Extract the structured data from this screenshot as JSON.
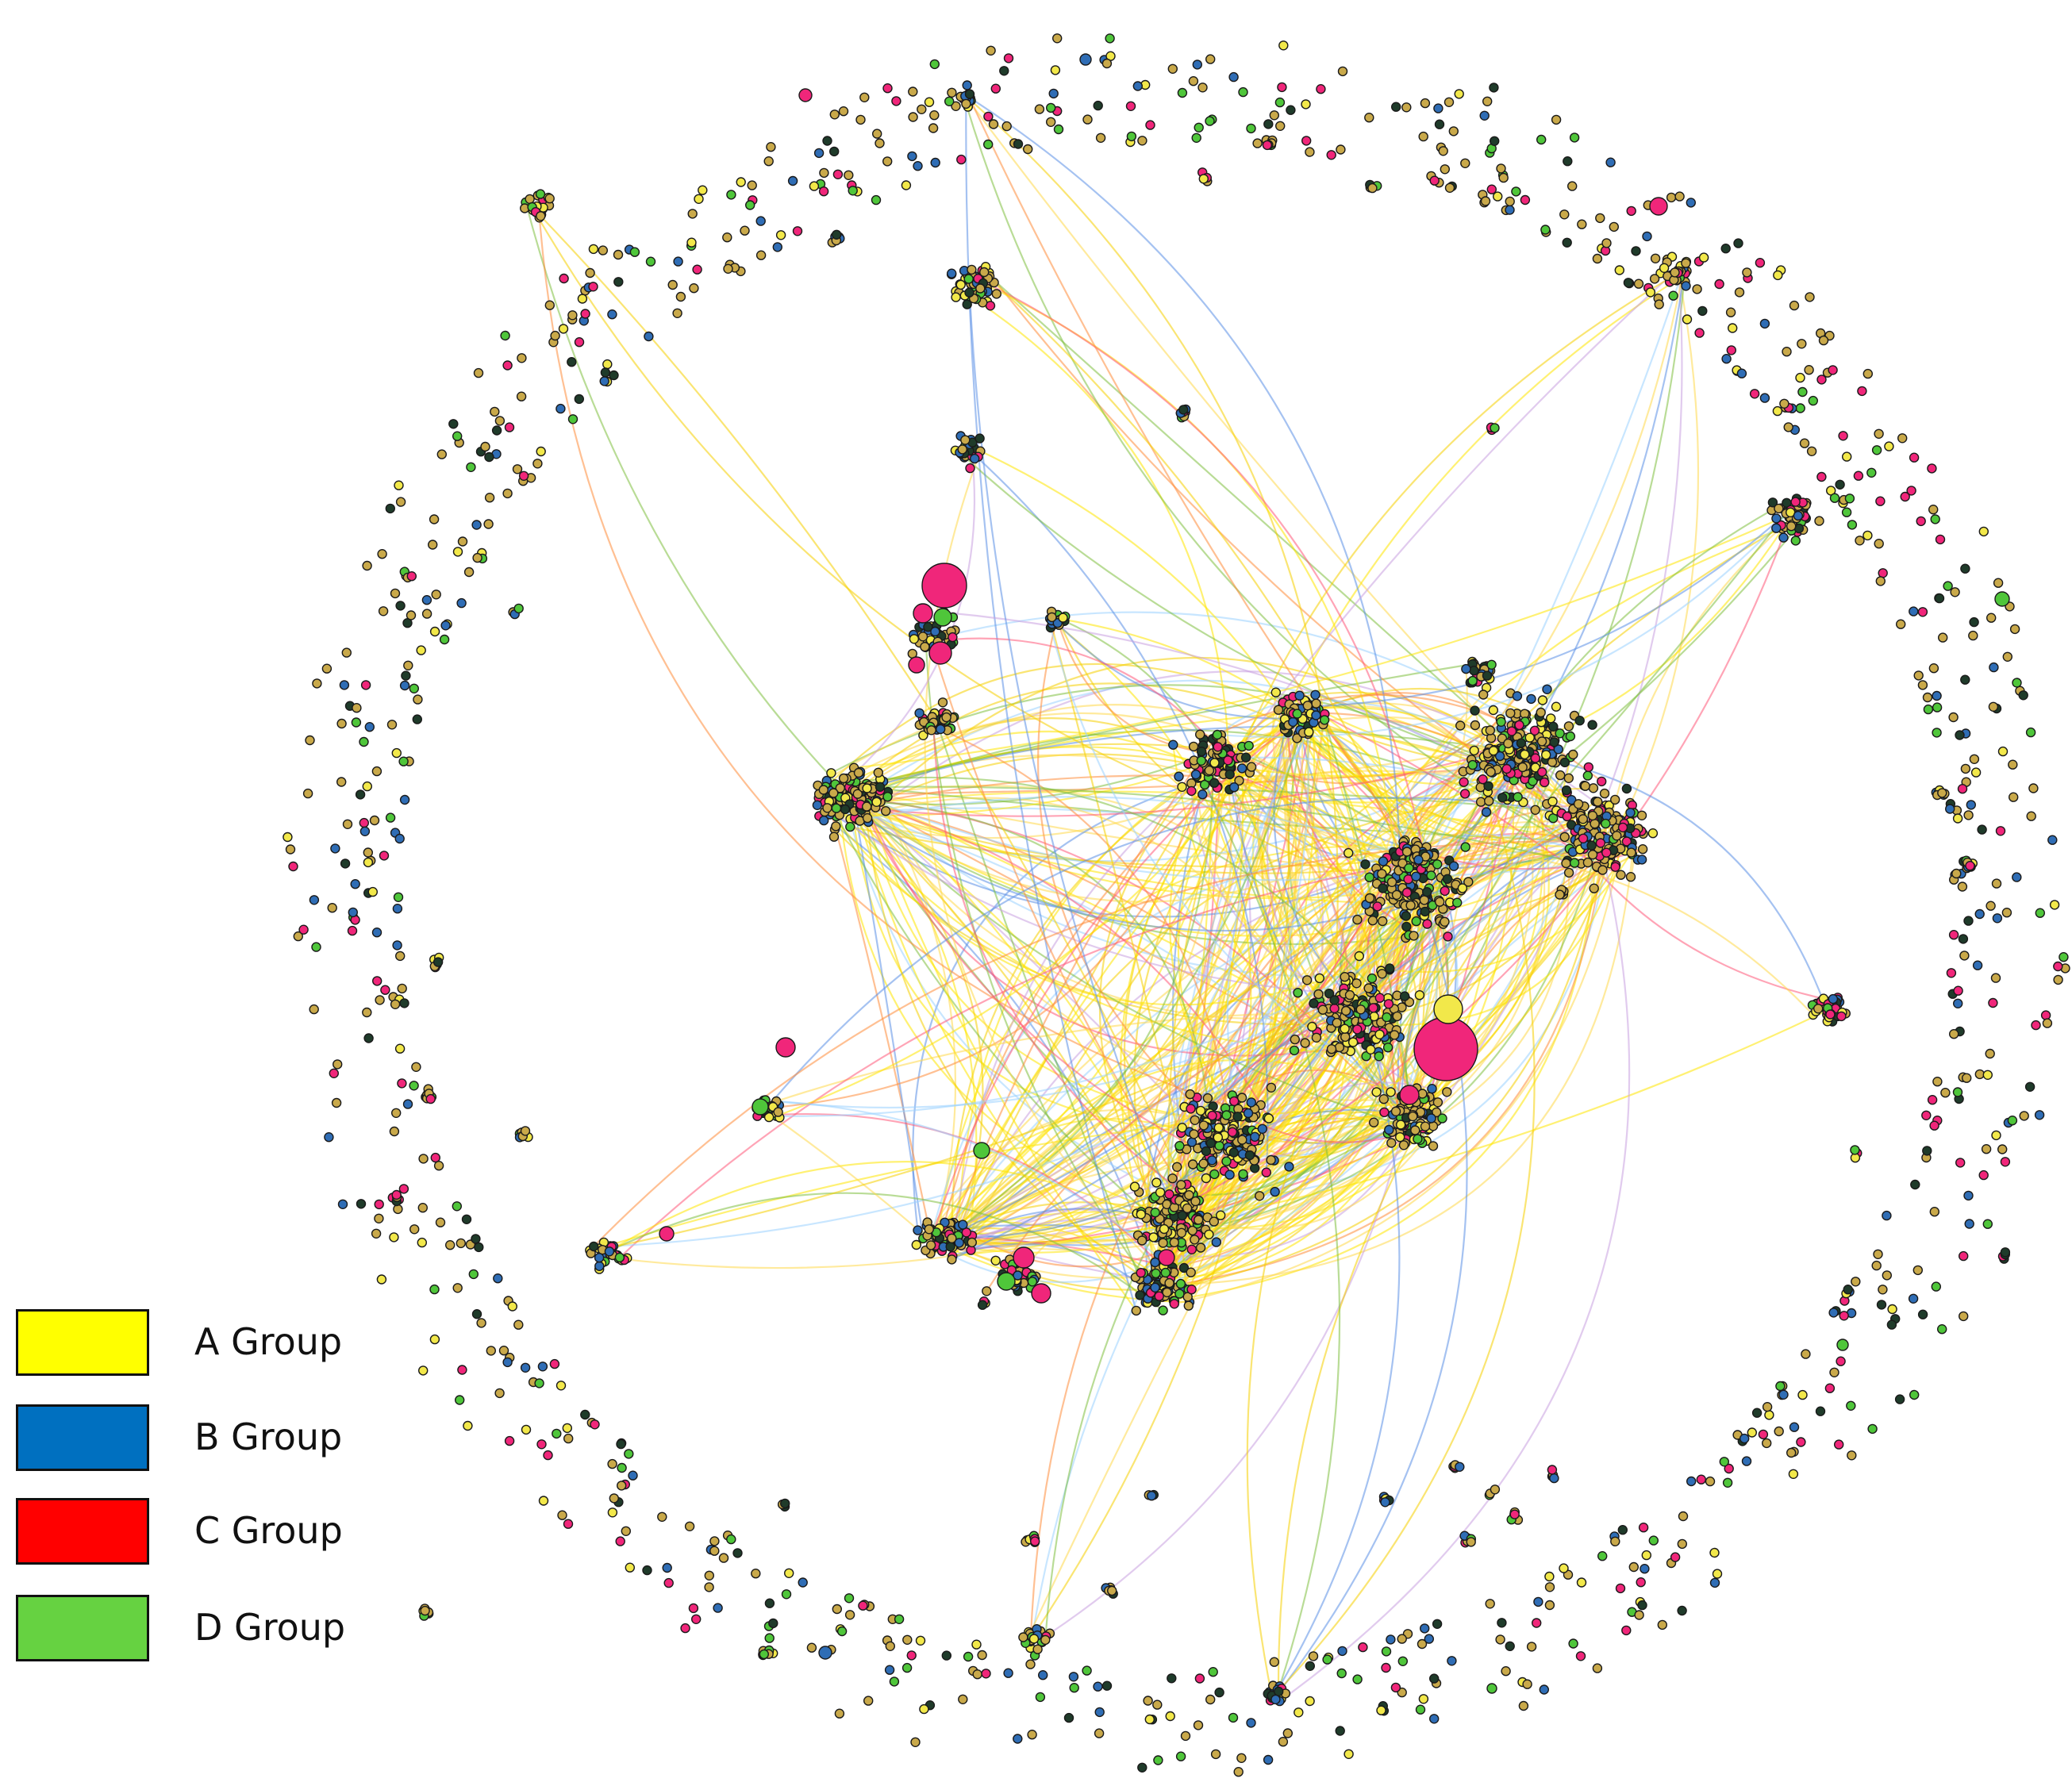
{
  "legend": {
    "items": [
      {
        "label": "A Group",
        "color": "#ffff00"
      },
      {
        "label": "B Group",
        "color": "#0070c0"
      },
      {
        "label": "C Group",
        "color": "#ff0000"
      },
      {
        "label": "D Group",
        "color": "#66d241"
      }
    ]
  },
  "network": {
    "node_colors": {
      "yellow": "#f2e84a",
      "olive": "#c9a94a",
      "blue": "#2f6db5",
      "pink": "#f0267a",
      "green": "#4fc63a",
      "dark": "#1f3b2a"
    },
    "edge_colors": [
      "#ffe600",
      "#f5d000",
      "#ffd84d",
      "#5b8fe6",
      "#7fbf3f",
      "#ff5a7a",
      "#ff8c3a",
      "#c9a0e0",
      "#9bd2ff"
    ]
  }
}
